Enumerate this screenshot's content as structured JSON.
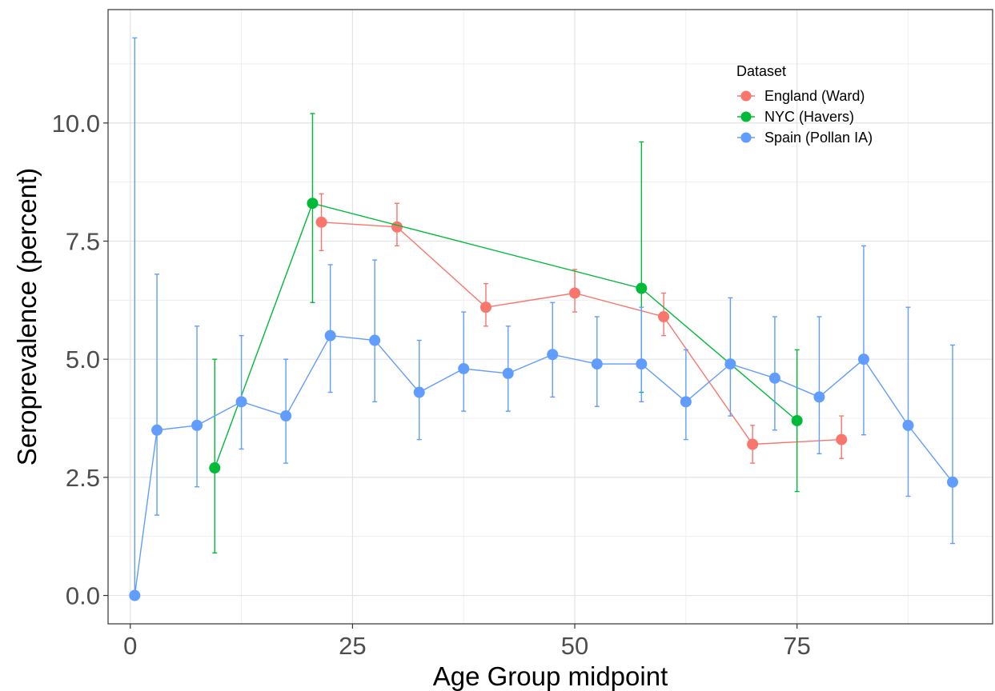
{
  "chart_data": {
    "type": "line",
    "xlabel": "Age Group midpoint",
    "ylabel": "Seroprevalence (percent)",
    "xlim": [
      -2.5,
      97
    ],
    "ylim": [
      -0.6,
      12.4
    ],
    "x_ticks": [
      0,
      25,
      50,
      75
    ],
    "x_tick_labels": [
      "0",
      "25",
      "50",
      "75"
    ],
    "y_ticks": [
      0,
      2.5,
      5,
      7.5,
      10
    ],
    "y_tick_labels": [
      "0.0",
      "2.5",
      "5.0",
      "7.5",
      "10.0"
    ],
    "grid": true,
    "legend": {
      "title": "Dataset",
      "placement": "top-right"
    },
    "series": [
      {
        "name": "England (Ward)",
        "color": "#F8766D",
        "x": [
          21.5,
          30,
          40,
          50,
          60,
          70,
          80
        ],
        "y": [
          7.9,
          7.8,
          6.1,
          6.4,
          5.9,
          3.2,
          3.3
        ],
        "lower": [
          7.3,
          7.4,
          5.7,
          6.0,
          5.5,
          2.8,
          2.9
        ],
        "upper": [
          8.5,
          8.3,
          6.6,
          6.9,
          6.4,
          3.6,
          3.8
        ]
      },
      {
        "name": "NYC (Havers)",
        "color": "#00BA38",
        "x": [
          9.5,
          20.5,
          57.5,
          75
        ],
        "y": [
          2.7,
          8.3,
          6.5,
          3.7
        ],
        "lower": [
          0.9,
          6.2,
          4.3,
          2.2
        ],
        "upper": [
          5.0,
          10.2,
          9.6,
          5.2
        ]
      },
      {
        "name": "Spain (Pollan IA)",
        "color": "#619CFF",
        "x": [
          0.5,
          3,
          7.5,
          12.5,
          17.5,
          22.5,
          27.5,
          32.5,
          37.5,
          42.5,
          47.5,
          52.5,
          57.5,
          62.5,
          67.5,
          72.5,
          77.5,
          82.5,
          87.5,
          92.5
        ],
        "y": [
          0.0,
          3.5,
          3.6,
          4.1,
          3.8,
          5.5,
          5.4,
          4.3,
          4.8,
          4.7,
          5.1,
          4.9,
          4.9,
          4.1,
          4.9,
          4.6,
          4.2,
          5.0,
          3.6,
          2.4
        ],
        "lower": [
          0.0,
          1.7,
          2.3,
          3.1,
          2.8,
          4.3,
          4.1,
          3.3,
          3.9,
          3.9,
          4.2,
          4.0,
          4.1,
          3.3,
          3.8,
          3.5,
          3.0,
          3.4,
          2.1,
          1.1
        ],
        "upper": [
          11.8,
          6.8,
          5.7,
          5.5,
          5.0,
          7.0,
          7.1,
          5.4,
          6.0,
          5.7,
          6.2,
          5.9,
          6.1,
          5.2,
          6.3,
          5.9,
          5.9,
          7.4,
          6.1,
          5.3
        ]
      }
    ]
  }
}
